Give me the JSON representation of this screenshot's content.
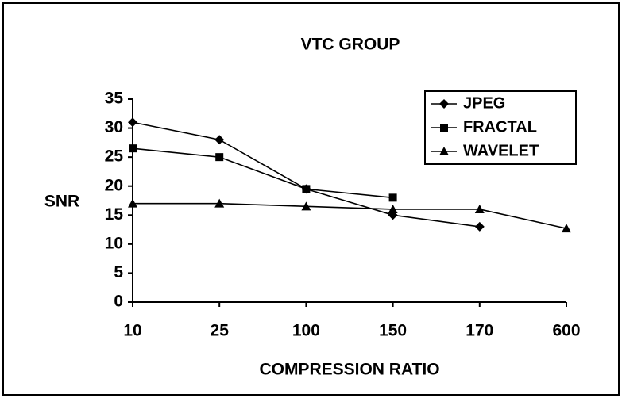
{
  "chart_data": {
    "type": "line",
    "title": "VTC GROUP",
    "x_label": "COMPRESSION RATIO",
    "y_label": "SNR",
    "categories": [
      "10",
      "25",
      "100",
      "150",
      "170",
      "600"
    ],
    "series": [
      {
        "name": "JPEG",
        "color": "#000000",
        "marker": "diamond",
        "values": [
          31,
          28,
          19.5,
          15,
          13,
          null
        ]
      },
      {
        "name": "FRACTAL",
        "color": "#000000",
        "marker": "square",
        "values": [
          26.5,
          25,
          19.5,
          18,
          null,
          null
        ]
      },
      {
        "name": "WAVELET",
        "color": "#000000",
        "marker": "triangle",
        "values": [
          17,
          17,
          16.5,
          16,
          16,
          12.7
        ]
      }
    ],
    "ylim": [
      0,
      35
    ],
    "yticks": [
      0,
      5,
      10,
      15,
      20,
      25,
      30,
      35
    ],
    "grid": false,
    "legend": "upper right"
  }
}
